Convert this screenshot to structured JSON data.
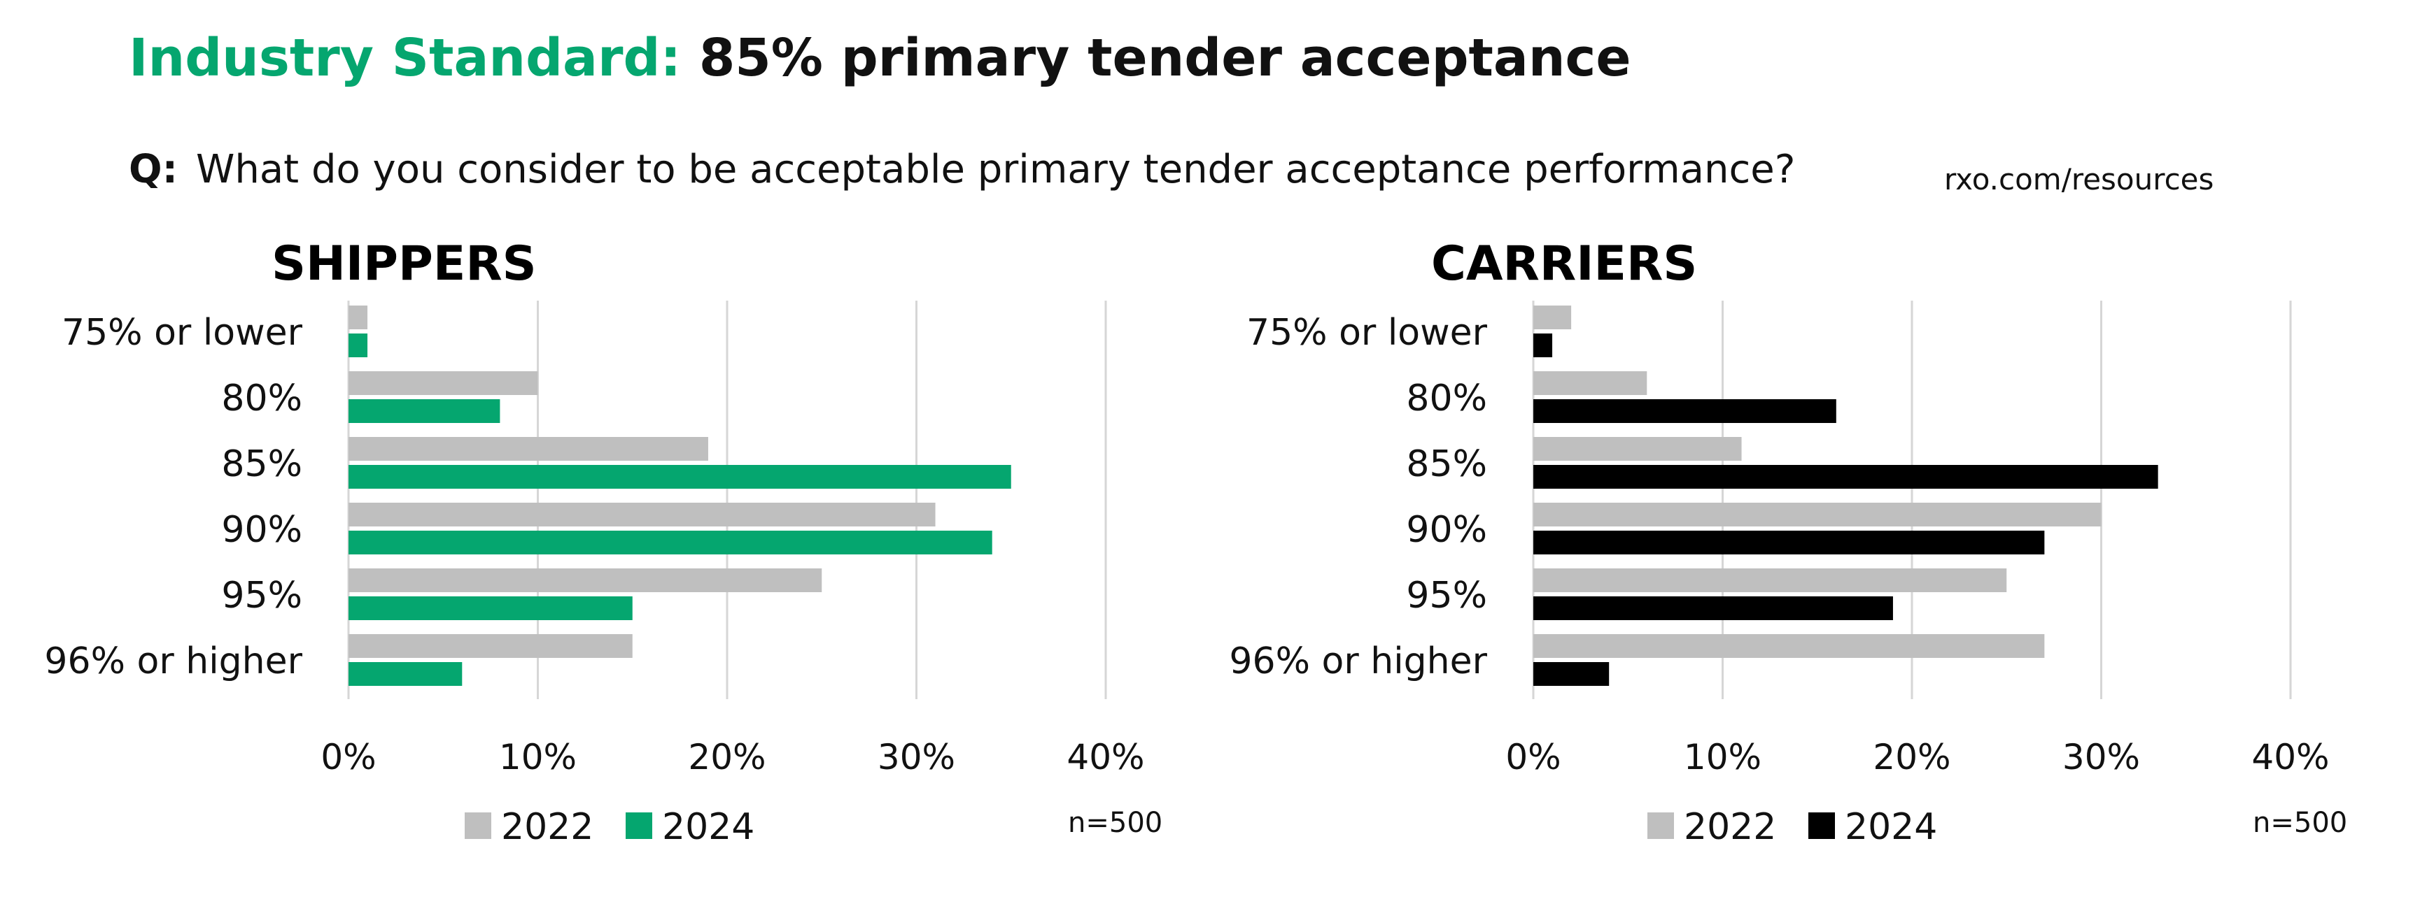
{
  "title": {
    "accent": "Industry Standard:",
    "rest": "85% primary tender acceptance"
  },
  "question": {
    "prefix": "Q:",
    "text": "What do you consider to be acceptable primary tender acceptance performance?"
  },
  "source": "rxo.com/resources",
  "colors": {
    "accent": "#05a66f",
    "gray_2022": "#bfbfbf",
    "black_2024": "#000000"
  },
  "chart_data": [
    {
      "type": "bar",
      "orientation": "horizontal",
      "title": "SHIPPERS",
      "categories": [
        "75% or lower",
        "80%",
        "85%",
        "90%",
        "95%",
        "96% or higher"
      ],
      "series": [
        {
          "name": "2022",
          "color": "#bfbfbf",
          "values": [
            1,
            10,
            19,
            31,
            25,
            15
          ]
        },
        {
          "name": "2024",
          "color": "#05a66f",
          "values": [
            1,
            8,
            35,
            34,
            15,
            6
          ]
        }
      ],
      "xlim": [
        0,
        40
      ],
      "xticks": [
        "0%",
        "10%",
        "20%",
        "30%",
        "40%"
      ],
      "grid": true,
      "legend": "bottom",
      "note": "n=500"
    },
    {
      "type": "bar",
      "orientation": "horizontal",
      "title": "CARRIERS",
      "categories": [
        "75% or lower",
        "80%",
        "85%",
        "90%",
        "95%",
        "96% or higher"
      ],
      "series": [
        {
          "name": "2022",
          "color": "#bfbfbf",
          "values": [
            2,
            6,
            11,
            30,
            25,
            27
          ]
        },
        {
          "name": "2024",
          "color": "#000000",
          "values": [
            1,
            16,
            33,
            27,
            19,
            4
          ]
        }
      ],
      "xlim": [
        0,
        40
      ],
      "xticks": [
        "0%",
        "10%",
        "20%",
        "30%",
        "40%"
      ],
      "grid": true,
      "legend": "bottom",
      "note": "n=500"
    }
  ]
}
